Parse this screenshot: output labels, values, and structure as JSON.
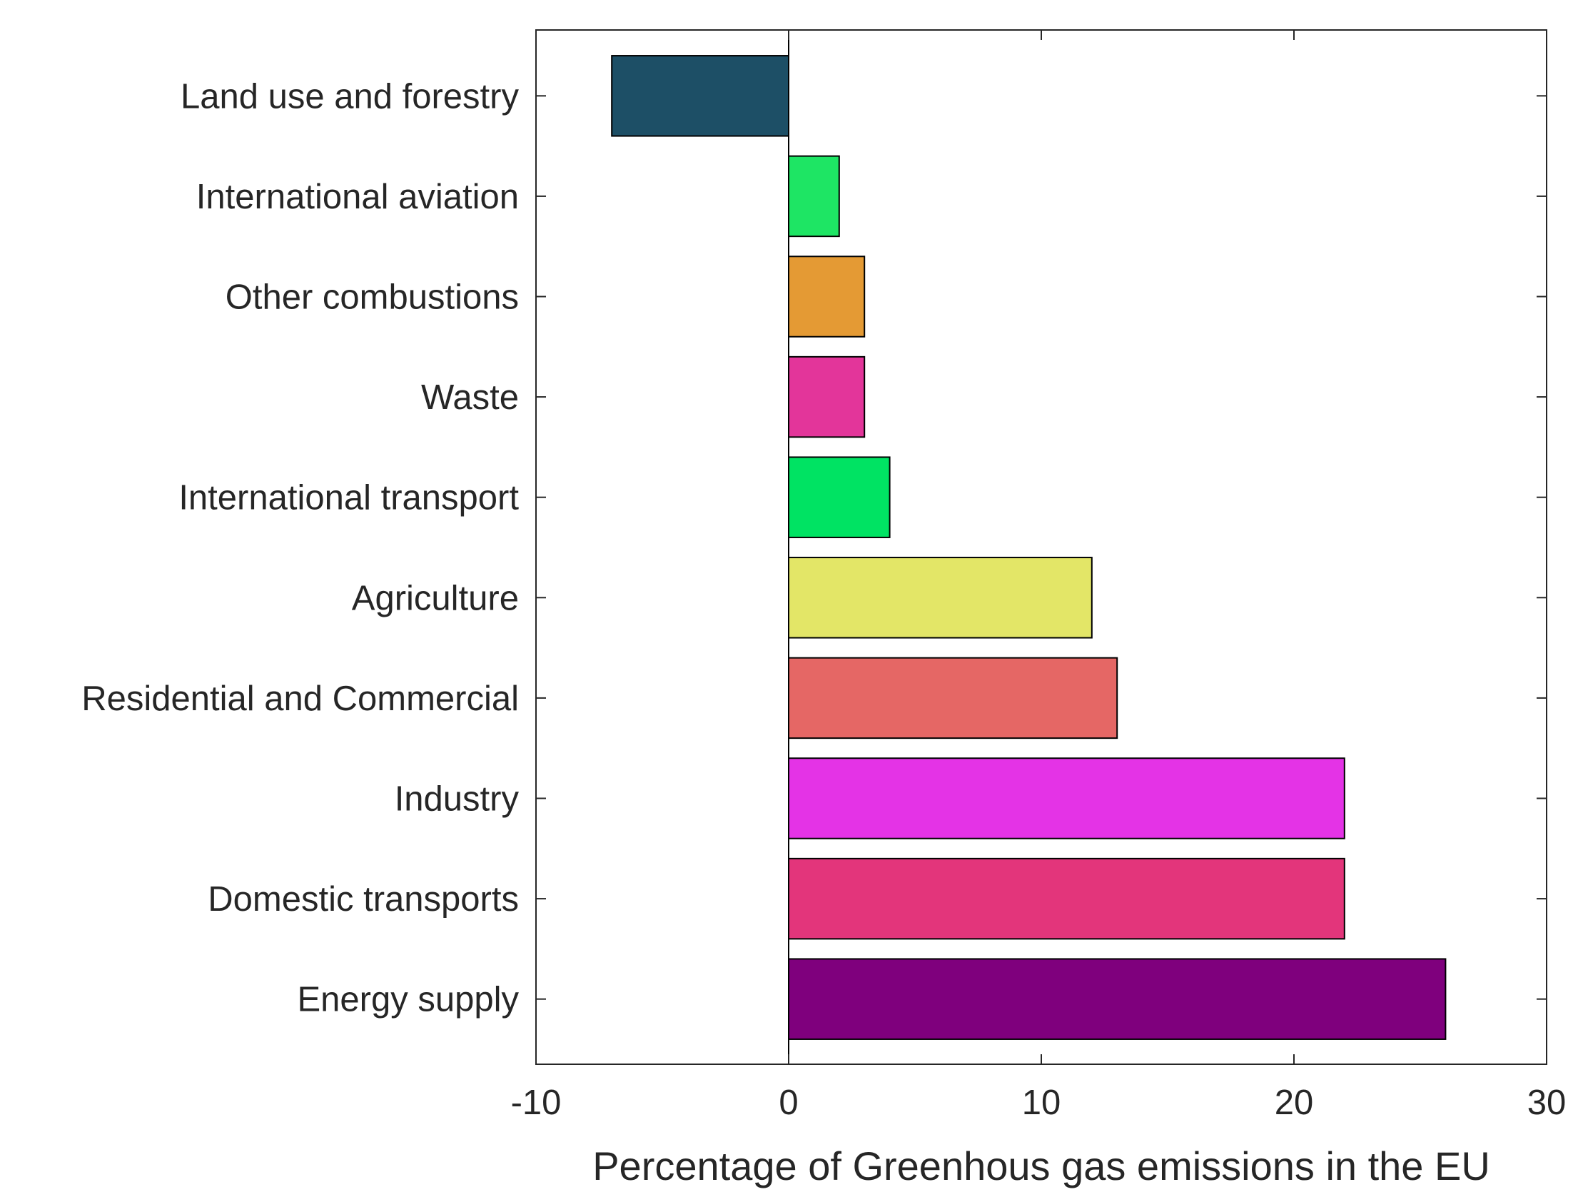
{
  "chart_data": {
    "type": "bar",
    "orientation": "horizontal",
    "title": "",
    "xlabel": "Percentage of Greenhous gas emissions in the EU",
    "ylabel": "",
    "xlim": [
      -10,
      30
    ],
    "xticks": [
      -10,
      0,
      10,
      20,
      30
    ],
    "xtick_labels": [
      "-10",
      "0",
      "10",
      "20",
      "30"
    ],
    "grid": false,
    "legend": "none",
    "categories": [
      "Land use and forestry",
      "International aviation",
      "Other combustions",
      "Waste",
      "International transport",
      "Agriculture",
      "Residential and Commercial",
      "Industry ",
      "Domestic transports",
      "Energy supply"
    ],
    "values": [
      -7,
      2,
      3,
      3,
      4,
      12,
      13,
      22,
      22,
      26
    ],
    "colors": [
      "#1d4f66",
      "#1ee564",
      "#e49a34",
      "#e3359a",
      "#00e363",
      "#e3e667",
      "#e56765",
      "#e433e6",
      "#e3357b",
      "#7f007d"
    ],
    "bar_edge_color": "#000000",
    "axis_color": "#262626"
  }
}
